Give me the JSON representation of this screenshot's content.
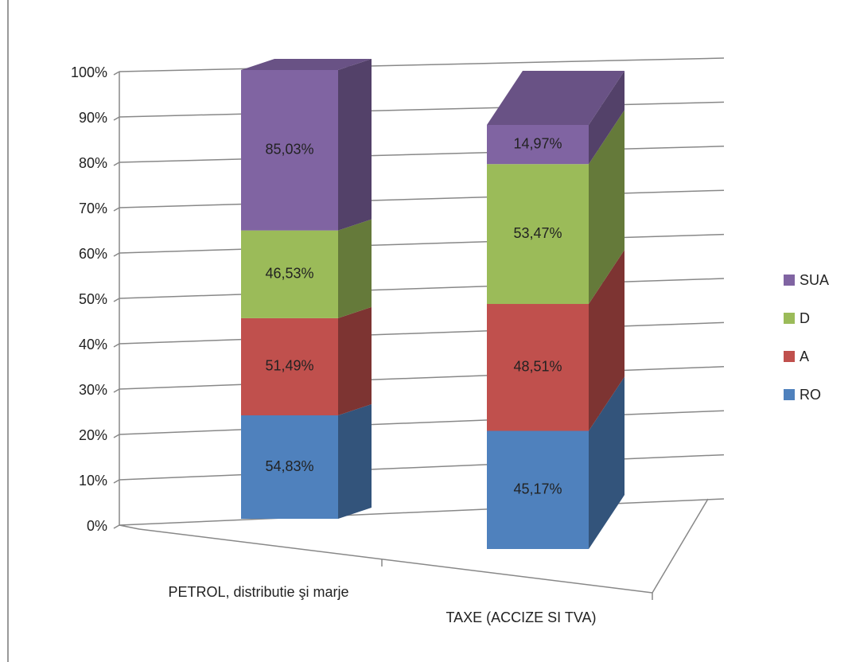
{
  "chart_data": {
    "type": "bar",
    "stacking": "percent",
    "categories": [
      "PETROL, distributie şi marje",
      "TAXE (ACCIZE SI TVA)"
    ],
    "series": [
      {
        "name": "RO",
        "color": "#4f81bd",
        "values": [
          54.83,
          45.17
        ],
        "value_labels": [
          "54,83%",
          "45,17%"
        ]
      },
      {
        "name": "A",
        "color": "#c0504d",
        "values": [
          51.49,
          48.51
        ],
        "value_labels": [
          "51,49%",
          "48,51%"
        ]
      },
      {
        "name": "D",
        "color": "#9bbb59",
        "values": [
          46.53,
          53.47
        ],
        "value_labels": [
          "46,53%",
          "53,47%"
        ]
      },
      {
        "name": "SUA",
        "color": "#8064a2",
        "values": [
          85.03,
          14.97
        ],
        "value_labels": [
          "85,03%",
          "14,97%"
        ]
      }
    ],
    "ylim": [
      0,
      100
    ],
    "yticks": [
      {
        "value": 0,
        "label": "0%"
      },
      {
        "value": 10,
        "label": "10%"
      },
      {
        "value": 20,
        "label": "20%"
      },
      {
        "value": 30,
        "label": "30%"
      },
      {
        "value": 40,
        "label": "40%"
      },
      {
        "value": 50,
        "label": "50%"
      },
      {
        "value": 60,
        "label": "60%"
      },
      {
        "value": 70,
        "label": "70%"
      },
      {
        "value": 80,
        "label": "80%"
      },
      {
        "value": 90,
        "label": "90%"
      },
      {
        "value": 100,
        "label": "100%"
      }
    ],
    "grid": true,
    "legend": "right"
  }
}
